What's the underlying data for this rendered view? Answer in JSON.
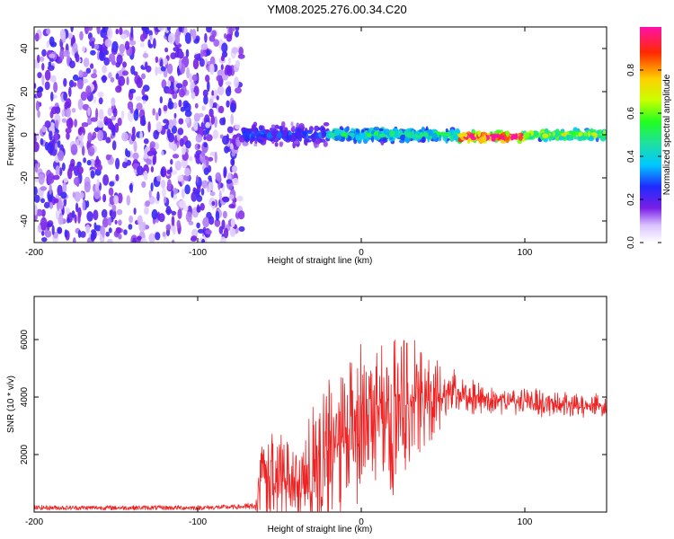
{
  "title": "YM08.2025.276.00.34.C20",
  "colors": {
    "spectrogram_low": "#dccbff",
    "spectrogram_mid": "#7a1ee6",
    "snr_line": "#ee2222",
    "axis": "#000000"
  },
  "chart_data": [
    {
      "type": "heatmap",
      "name": "spectrogram",
      "xlabel": "Height of straight line (km)",
      "ylabel": "Frequency (Hz)",
      "xlim": [
        -200,
        150
      ],
      "ylim": [
        -50,
        50
      ],
      "xticks": [
        -200,
        -100,
        0,
        100
      ],
      "yticks": [
        -40,
        -20,
        0,
        20,
        40
      ],
      "colorbar": {
        "label": "Normalized spectral amplitude",
        "range": [
          0,
          1
        ],
        "ticks": [
          "0.0",
          "0.2",
          "0.4",
          "0.6",
          "0.8"
        ]
      },
      "regions": [
        {
          "x_range": [
            -200,
            -73
          ],
          "freq_range": [
            -50,
            50
          ],
          "amplitude": 0.12,
          "description": "broadband noise"
        },
        {
          "x_range": [
            -73,
            -20
          ],
          "freq_center": 0,
          "freq_halfwidth": 6,
          "amplitude": 0.25
        },
        {
          "x_range": [
            -20,
            60
          ],
          "freq_center": 0,
          "freq_halfwidth": 4,
          "amplitude": 0.45
        },
        {
          "x_range": [
            60,
            100
          ],
          "freq_center": -1,
          "freq_halfwidth": 3,
          "amplitude": 0.95
        },
        {
          "x_range": [
            100,
            150
          ],
          "freq_center": 0,
          "freq_halfwidth": 3,
          "amplitude": 0.6
        }
      ]
    },
    {
      "type": "line",
      "name": "snr",
      "xlabel": "Height of straight line (km)",
      "ylabel": "SNR (10 * v/v)",
      "xlim": [
        -200,
        150
      ],
      "ylim": [
        0,
        7500
      ],
      "xticks": [
        -200,
        -100,
        0,
        100
      ],
      "yticks": [
        2000,
        4000,
        6000
      ],
      "series": [
        {
          "name": "SNR",
          "color": "#ee2222",
          "x": [
            -200,
            -150,
            -100,
            -75,
            -65,
            -60,
            -55,
            -50,
            -45,
            -40,
            -35,
            -30,
            -25,
            -20,
            -15,
            -10,
            -5,
            0,
            5,
            10,
            15,
            20,
            25,
            30,
            35,
            40,
            45,
            50,
            55,
            60,
            70,
            80,
            90,
            100,
            110,
            120,
            130,
            140,
            150
          ],
          "values": [
            150,
            150,
            150,
            180,
            200,
            1600,
            1200,
            1300,
            1000,
            1100,
            900,
            1200,
            1800,
            2000,
            2400,
            2600,
            2900,
            3000,
            3200,
            3300,
            3400,
            3600,
            3800,
            3900,
            4000,
            4100,
            4150,
            4100,
            4050,
            4000,
            3950,
            3900,
            3850,
            3850,
            3800,
            3800,
            3750,
            3700,
            3650
          ],
          "spike_amplitude": [
            0,
            0,
            0,
            100,
            150,
            1600,
            1500,
            1400,
            1500,
            1300,
            1100,
            2200,
            2600,
            2700,
            2400,
            2200,
            2300,
            2600,
            2500,
            2200,
            2600,
            2800,
            2300,
            2100,
            1800,
            1600,
            1300,
            1000,
            900,
            700,
            600,
            500,
            450,
            400,
            400,
            400,
            400,
            400,
            400
          ]
        }
      ]
    }
  ]
}
